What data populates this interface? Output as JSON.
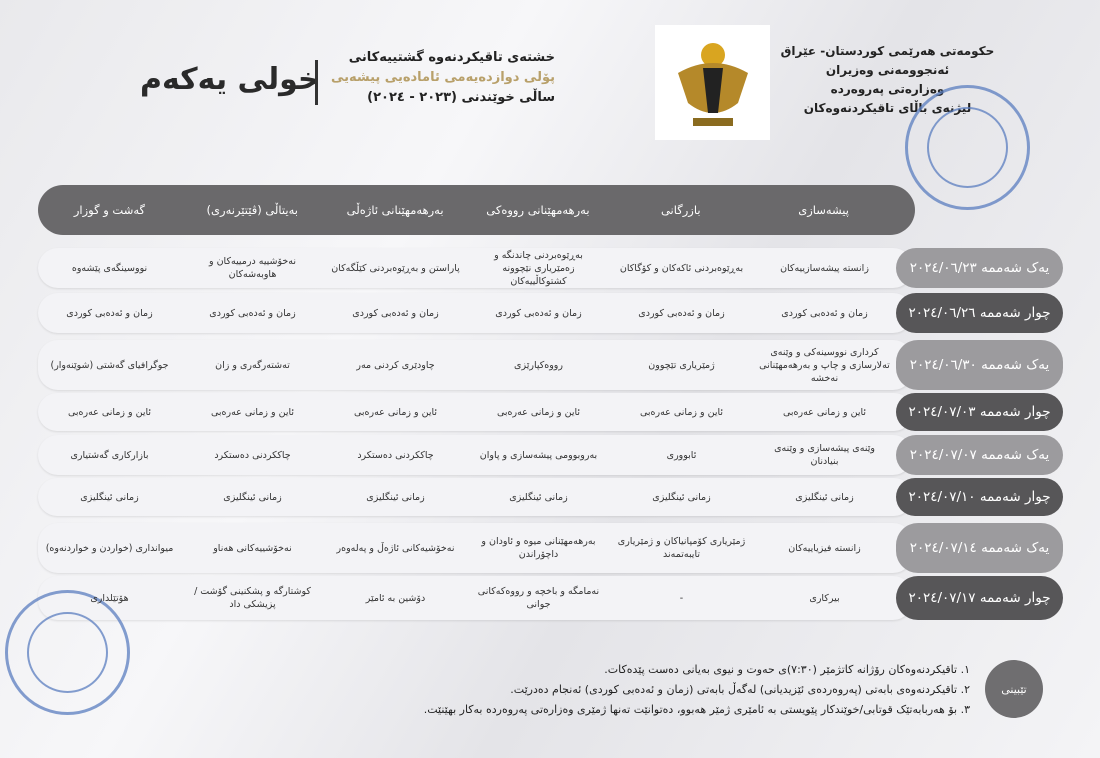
{
  "header": {
    "round": "خولی یەکەم",
    "title_lines": [
      "خشتەی تاقیکردنەوە گشتییەکانی",
      "پۆلی دوازدەیەمی ئامادەیی پیشەیی",
      "ساڵی خوێندنی (٢٠٢٣ - ٢٠٢٤)"
    ]
  },
  "government": {
    "lines": [
      "حکومەتی هەرێمی کوردستان- عێراق",
      "ئەنجوومەنی وەزیران",
      "وەزارەتی پەروەردە",
      "لیژنەی باڵای تاقیکردنەوەکان"
    ]
  },
  "colors": {
    "header_bar": "#6a696b",
    "date_dark": "#575658",
    "date_light": "#9c9b9e",
    "stamp": "#5b7ec0",
    "gold": "#b8a06a"
  },
  "columns": [
    "پیشەسازی",
    "بازرگانی",
    "بەرهەمهێنانی رووەکی",
    "بەرهەمهێنانی ئاژەڵی",
    "بەیتاڵی (ڤێتێرنەری)",
    "گەشت و گوزار"
  ],
  "rows": [
    {
      "date": "یەک شەممە ٢٠٢٤/٠٦/٢٣",
      "shade": "light",
      "cells": [
        "زانستە پیشەسازییەکان",
        "بەڕێوەبردنی ئاکەکان و کۆگاکان",
        "بەڕێوەبردنی چاندنگە و زەمێریاری نێچوونە کشتوکاڵییەکان",
        "پاراستن و بەڕێوەبردنی کێڵگەکان",
        "نەخۆشییە درمییەکان و هاوبەشەکان",
        "نووسینگەی پێشەوە"
      ]
    },
    {
      "date": "چوار شەممە ٢٠٢٤/٠٦/٢٦",
      "shade": "dark",
      "cells": [
        "زمان و ئەدەبی کوردی",
        "زمان و ئەدەبی کوردی",
        "زمان و ئەدەبی کوردی",
        "زمان و ئەدەبی کوردی",
        "زمان و ئەدەبی کوردی",
        "زمان و ئەدەبی کوردی"
      ]
    },
    {
      "date": "یەک شەممە ٢٠٢٤/٠٦/٣٠",
      "shade": "light",
      "cells": [
        "کرداری نووسینەکی و وێنەی تەلارسازی و چاپ و بەرهەمهێنانی نەخشە",
        "ژمێریاری تێچوون",
        "رووەکپارێزی",
        "چاودێری کردنی مەر",
        "تەشتەرگەری و زان",
        "جوگرافیای گەشتی (شوێنەوار)"
      ]
    },
    {
      "date": "چوار شەممە ٢٠٢٤/٠٧/٠٣",
      "shade": "dark",
      "cells": [
        "ئاین و زمانی عەرەبی",
        "ئاین و زمانی عەرەبی",
        "ئاین و زمانی عەرەبی",
        "ئاین و زمانی عەرەبی",
        "ئاین و زمانی عەرەبی",
        "ئاین و زمانی عەرەبی"
      ]
    },
    {
      "date": "یەک شەممە ٢٠٢٤/٠٧/٠٧",
      "shade": "light",
      "cells": [
        "وێنەی پیشەسازی و وێنەی بنیادنان",
        "ئابووری",
        "بەروبوومی پیشەسازی و پاوان",
        "چاککردنی دەستکرد",
        "چاککردنی دەستکرد",
        "بازارکاری گەشتیاری"
      ]
    },
    {
      "date": "چوار شەممە ٢٠٢٤/٠٧/١٠",
      "shade": "dark",
      "cells": [
        "زمانی ئینگلیزی",
        "زمانی ئینگلیزی",
        "زمانی ئینگلیزی",
        "زمانی ئینگلیزی",
        "زمانی ئینگلیزی",
        "زمانی ئینگلیزی"
      ]
    },
    {
      "date": "یەک شەممە ٢٠٢٤/٠٧/١٤",
      "shade": "light",
      "cells": [
        "زانستە فیزیاییەکان",
        "ژمێریاری کۆمپانیاکان و ژمێریاری تایبەتمەند",
        "بەرهەمهێنانی میوە و ئاودان و داچۆراندن",
        "نەخۆشیەکانی ئاژەڵ و پەلەوەر",
        "نەخۆشییەکانی هەناو",
        "میوانداری (خواردن و خواردنەوە)"
      ]
    },
    {
      "date": "چوار شەممە ٢٠٢٤/٠٧/١٧",
      "shade": "dark",
      "cells": [
        "بیرکاری",
        "-",
        "نەمامگە و باخچە و رووەکەکانی جوانی",
        "دۆشین بە ئامێر",
        "کوشتارگە و پشکنینی گۆشت / پزیشکی داد",
        "هۆتێلداری"
      ]
    }
  ],
  "notes": {
    "label": "تێبینی",
    "items": [
      "١. تاقیکردنەوەکان رۆژانە کاتژمێر (٧:٣٠)ی حەوت و نیوی بەیانی دەست پێدەکات.",
      "٢. تاقیکردنەوەی بابەتی (پەروەردەی ئێزیدیانی) لەگەڵ بابەتی (زمان و ئەدەبی کوردی) ئەنجام دەدرێت.",
      "٣. بۆ هەربابەتێک قوتابی/خوێندکار پێویستی بە ئامێری ژمێر هەبوو، دەتوانێت تەنها ژمێری وەزارەتی پەروەردە بەکار بهێنێت."
    ]
  }
}
